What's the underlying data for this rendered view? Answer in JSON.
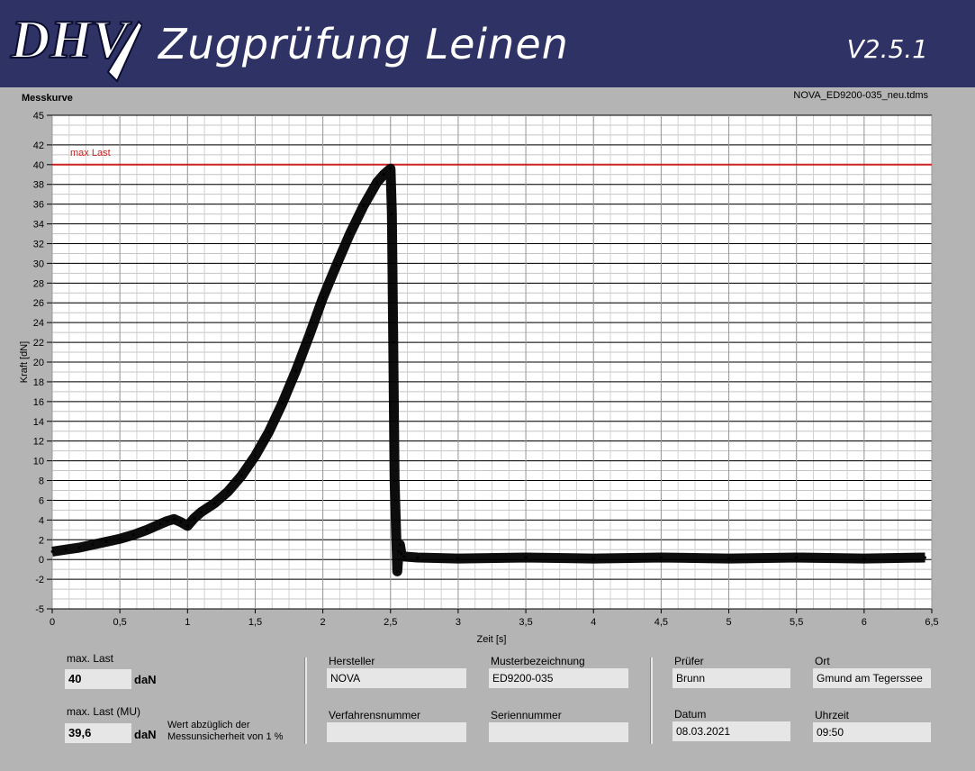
{
  "header": {
    "logo_text": "DHV",
    "title": "Zugprüfung Leinen",
    "version": "V2.5.1",
    "background": "#2f3265"
  },
  "chart_panel": {
    "title": "Messkurve",
    "file_name": "NOVA_ED9200-035_neu.tdms"
  },
  "chart_data": {
    "type": "line",
    "xlabel": "Zeit [s]",
    "ylabel": "Kraft [dN]",
    "xlim": [
      0,
      6.5
    ],
    "ylim": [
      -5,
      45
    ],
    "xticks": [
      "0",
      "0,5",
      "1",
      "1,5",
      "2",
      "2,5",
      "3",
      "3,5",
      "4",
      "4,5",
      "5",
      "5,5",
      "6",
      "6,5"
    ],
    "yticks": [
      "45",
      "42",
      "40",
      "38",
      "36",
      "34",
      "32",
      "30",
      "28",
      "26",
      "24",
      "22",
      "20",
      "18",
      "16",
      "14",
      "12",
      "10",
      "8",
      "6",
      "4",
      "2",
      "0",
      "-2",
      "-5"
    ],
    "grid": true,
    "plot_background": "#ffffff",
    "series": [
      {
        "color": "#000000",
        "x": [
          0,
          0.1,
          0.2,
          0.3,
          0.4,
          0.5,
          0.6,
          0.7,
          0.8,
          0.85,
          0.9,
          0.95,
          1.0,
          1.05,
          1.1,
          1.2,
          1.3,
          1.4,
          1.5,
          1.6,
          1.7,
          1.8,
          1.9,
          2.0,
          2.1,
          2.2,
          2.3,
          2.4,
          2.45,
          2.5,
          2.51,
          2.52,
          2.53,
          2.55,
          2.56,
          2.57,
          2.58,
          2.6,
          2.7,
          3.0,
          3.5,
          4.0,
          4.5,
          5.0,
          5.5,
          6.0,
          6.45
        ],
        "y": [
          0.8,
          1.0,
          1.2,
          1.5,
          1.8,
          2.1,
          2.5,
          3.0,
          3.6,
          3.9,
          4.1,
          3.8,
          3.4,
          4.2,
          4.8,
          5.7,
          6.9,
          8.5,
          10.5,
          12.9,
          15.8,
          19.1,
          22.7,
          26.5,
          29.8,
          33.0,
          35.8,
          38.2,
          39.0,
          39.6,
          35.0,
          22.0,
          8.0,
          -1.2,
          0.8,
          1.5,
          0.6,
          0.3,
          0.2,
          0.1,
          0.2,
          0.1,
          0.2,
          0.1,
          0.2,
          0.1,
          0.2
        ]
      }
    ],
    "reference_line": {
      "label": "max Last",
      "value": 40,
      "color": "#cc2222"
    }
  },
  "results": {
    "max_load_label": "max. Last",
    "max_load_value": "40",
    "max_load_unit": "daN",
    "max_load_mu_label": "max. Last (MU)",
    "max_load_mu_value": "39,6",
    "max_load_mu_unit": "daN",
    "mu_note_line1": "Wert abzüglich der",
    "mu_note_line2": "Messunsicherheit von 1 %"
  },
  "sample": {
    "hersteller_label": "Hersteller",
    "hersteller_value": "NOVA",
    "muster_label": "Musterbezeichnung",
    "muster_value": "ED9200-035",
    "verfahren_label": "Verfahrensnummer",
    "verfahren_value": "",
    "serien_label": "Seriennummer",
    "serien_value": ""
  },
  "test": {
    "pruefer_label": "Prüfer",
    "pruefer_value": "Brunn",
    "ort_label": "Ort",
    "ort_value": "Gmund am Tegerssee",
    "datum_label": "Datum",
    "datum_value": "08.03.2021",
    "uhrzeit_label": "Uhrzeit",
    "uhrzeit_value": "09:50"
  }
}
